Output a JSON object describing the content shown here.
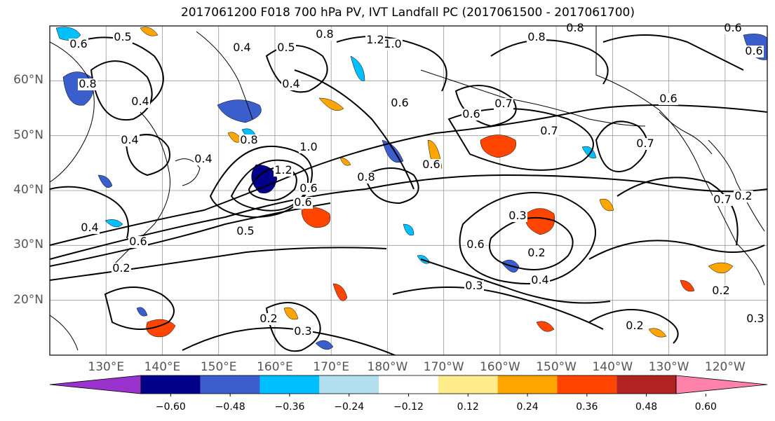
{
  "title": "2017061200 F018 700 hPa PV, IVT Landfall PC (2017061500 - 2017061700)",
  "lat_ticks": [
    {
      "label": "60°N",
      "lat": 60
    },
    {
      "label": "50°N",
      "lat": 50
    },
    {
      "label": "40°N",
      "lat": 40
    },
    {
      "label": "30°N",
      "lat": 30
    },
    {
      "label": "20°N",
      "lat": 20
    }
  ],
  "lon_ticks": [
    {
      "label": "130°E",
      "lon": 130
    },
    {
      "label": "140°E",
      "lon": 140
    },
    {
      "label": "150°E",
      "lon": 150
    },
    {
      "label": "160°E",
      "lon": 160
    },
    {
      "label": "170°E",
      "lon": 170
    },
    {
      "label": "180°W",
      "lon": 180
    },
    {
      "label": "170°W",
      "lon": 190
    },
    {
      "label": "160°W",
      "lon": 200
    },
    {
      "label": "150°W",
      "lon": 210
    },
    {
      "label": "140°W",
      "lon": 220
    },
    {
      "label": "130°W",
      "lon": 230
    },
    {
      "label": "120°W",
      "lon": 240
    }
  ],
  "colorbar": {
    "colors": [
      "#9a32cd",
      "#00008b",
      "#3a5fcd",
      "#00bfff",
      "#b2dfee",
      "#ffffff",
      "#ffec8b",
      "#ffa500",
      "#ff4500",
      "#b22222",
      "#ff82ab"
    ],
    "labels": [
      "−0.60",
      "−0.48",
      "−0.36",
      "−0.24",
      "−0.12",
      "0.12",
      "0.24",
      "0.36",
      "0.48",
      "0.60"
    ]
  },
  "contour_labels": [
    "0.5",
    "0.6",
    "0.4",
    "0.5",
    "0.8",
    "1.2",
    "1.0",
    "0.8",
    "0.6",
    "0.8",
    "0.6",
    "0.8",
    "0.4",
    "0.4",
    "0.8",
    "0.7",
    "0.4",
    "0.4",
    "0.6",
    "0.6",
    "1.2",
    "1.0",
    "0.6",
    "0.8",
    "0.6",
    "0.5",
    "0.4",
    "0.6",
    "0.2",
    "0.3",
    "0.2",
    "0.6",
    "0.4",
    "0.3",
    "0.2",
    "0.2",
    "0.3",
    "0.7",
    "0.6",
    "0.6",
    "0.7",
    "0.7",
    "0.2",
    "0.2",
    "0.3"
  ]
}
